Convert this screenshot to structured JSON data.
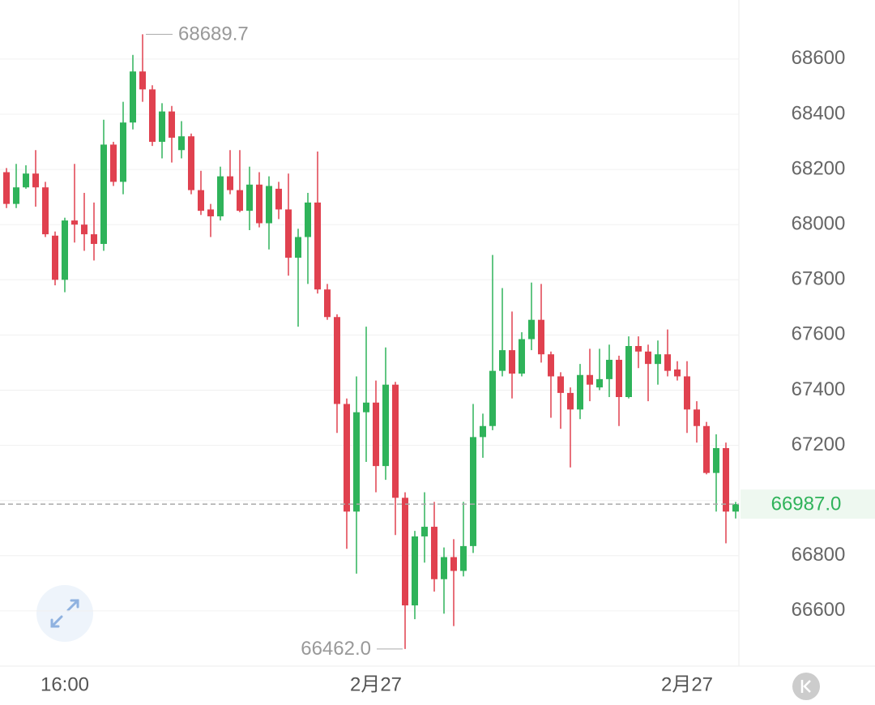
{
  "chart_data": {
    "type": "candlestick",
    "categories": [
      null,
      null,
      null,
      null,
      null,
      null,
      "16:00",
      null,
      null,
      null,
      null,
      null,
      null,
      null,
      null,
      null,
      null,
      null,
      null,
      null,
      null,
      null,
      null,
      null,
      null,
      null,
      null,
      null,
      null,
      null,
      null,
      null,
      null,
      null,
      null,
      null,
      null,
      null,
      "2月27",
      null,
      null,
      null,
      null,
      null,
      null,
      null,
      null,
      null,
      null,
      null,
      null,
      null,
      null,
      null,
      null,
      null,
      null,
      null,
      null,
      null,
      null,
      null,
      null,
      null,
      null,
      null,
      null,
      null,
      null,
      null,
      "2月27",
      null,
      null,
      null,
      null,
      null
    ],
    "open": [
      68190,
      68075,
      68135,
      68185,
      68135,
      67960,
      67800,
      68015,
      68000,
      67965,
      67930,
      68290,
      68155,
      68370,
      68555,
      68490,
      68300,
      68410,
      68270,
      68320,
      68125,
      68055,
      68030,
      68175,
      68125,
      68050,
      68145,
      68005,
      68130,
      68055,
      67880,
      67955,
      68080,
      67765,
      67665,
      67350,
      66960,
      67320,
      67355,
      67125,
      67420,
      67010,
      66620,
      66870,
      66905,
      66715,
      66795,
      66745,
      66835,
      67230,
      67270,
      67470,
      67545,
      67460,
      67585,
      67655,
      67530,
      67450,
      67390,
      67330,
      67455,
      67410,
      67440,
      67510,
      67375,
      67560,
      67540,
      67495,
      67530,
      67475,
      67450,
      67330,
      67270,
      67100,
      67190,
      66960
    ],
    "high": [
      68205,
      68220,
      68215,
      68270,
      68155,
      67975,
      68025,
      68220,
      68115,
      68080,
      68380,
      68300,
      68445,
      68615,
      68689.7,
      68505,
      68440,
      68430,
      68375,
      68330,
      68195,
      68075,
      68210,
      68270,
      68270,
      68210,
      68190,
      68175,
      68155,
      68185,
      67985,
      68115,
      68265,
      67785,
      67675,
      67370,
      67450,
      67630,
      67435,
      67555,
      67430,
      67030,
      66890,
      67030,
      66995,
      66830,
      66860,
      66995,
      67350,
      67315,
      67890,
      67770,
      67685,
      67610,
      67790,
      67785,
      67540,
      67465,
      67410,
      67495,
      67550,
      67550,
      67565,
      67525,
      67595,
      67595,
      67565,
      67580,
      67620,
      67505,
      67505,
      67360,
      67285,
      67240,
      67210,
      66995
    ],
    "low": [
      68060,
      68060,
      68130,
      68065,
      67955,
      67780,
      67755,
      67935,
      67905,
      67870,
      67905,
      68140,
      68110,
      68345,
      68445,
      68285,
      68240,
      68225,
      68240,
      68110,
      68035,
      67955,
      68015,
      68110,
      68045,
      67980,
      67990,
      67910,
      68020,
      67815,
      67630,
      67785,
      67750,
      67655,
      67245,
      66825,
      66735,
      67140,
      67030,
      67075,
      66875,
      66462,
      66570,
      66775,
      66670,
      66590,
      66545,
      66725,
      66810,
      67155,
      67255,
      67450,
      67370,
      67450,
      67545,
      67500,
      67300,
      67260,
      67120,
      67295,
      67360,
      67400,
      67375,
      67270,
      67370,
      67480,
      67360,
      67420,
      67450,
      67435,
      67245,
      67210,
      67095,
      66960,
      66845,
      66935
    ],
    "close": [
      68075,
      68135,
      68185,
      68135,
      67965,
      67800,
      68015,
      68000,
      67965,
      67930,
      68290,
      68155,
      68370,
      68555,
      68490,
      68300,
      68410,
      68315,
      68320,
      68125,
      68050,
      68030,
      68175,
      68125,
      68050,
      68145,
      68005,
      68140,
      68055,
      67880,
      67955,
      68080,
      67765,
      67665,
      67350,
      66960,
      67320,
      67355,
      67125,
      67420,
      67010,
      66620,
      66870,
      66905,
      66715,
      66795,
      66745,
      66835,
      67230,
      67270,
      67470,
      67545,
      67460,
      67585,
      67655,
      67530,
      67450,
      67390,
      67330,
      67455,
      67420,
      67440,
      67510,
      67375,
      67560,
      67540,
      67495,
      67530,
      67470,
      67450,
      67330,
      67270,
      67100,
      67190,
      66960,
      66987
    ],
    "up_color": "#2fb35a",
    "down_color": "#e0414f",
    "ylim": [
      66400,
      68814
    ],
    "yticks": [
      66600,
      66800,
      67000,
      67200,
      67400,
      67600,
      67800,
      68000,
      68200,
      68400,
      68600
    ],
    "grid": true,
    "annotations": {
      "high": {
        "value": 68689.7
      },
      "low": {
        "value": 66462,
        "label": "66462.0"
      },
      "last": {
        "value": 66987,
        "label": "66987.0"
      }
    }
  }
}
